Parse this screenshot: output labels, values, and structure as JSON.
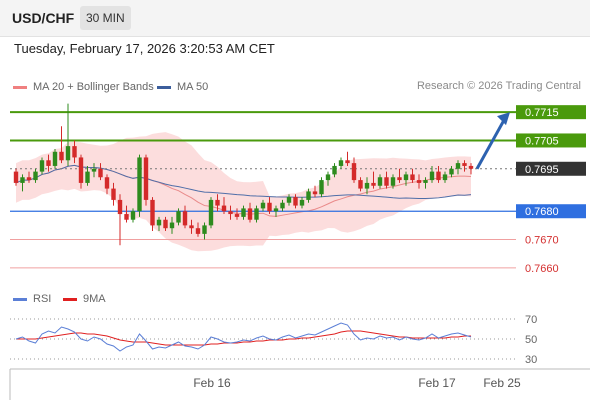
{
  "header": {
    "symbol": "USD/CHF",
    "interval": "30 MIN",
    "datetime": "Tuesday, February 17, 2026 3:20:53 AM CET"
  },
  "legend": {
    "ma20_label": "MA 20 + Bollinger Bands",
    "ma50_label": "MA 50",
    "credit": "Research © 2026 Trading Central"
  },
  "rsi_legend": {
    "rsi_label": "RSI",
    "ma9_label": "9MA"
  },
  "colors": {
    "up_candle": "#2e8b1e",
    "down_candle": "#d42a2a",
    "bollinger_fill": "#fbd4d4",
    "ma20": "#e98a8a",
    "ma50": "#4f6ea8",
    "target_green": "#4a9a0c",
    "pivot_blue": "#2f6fe0",
    "support_red": "#f0a0a0",
    "last_price": "#333333",
    "arrow": "#2d62b0",
    "rsi_line": "#5b7fd6",
    "rsi_ma": "#e02020"
  },
  "chart_data": [
    {
      "type": "candlestick",
      "ylim": [
        0.7655,
        0.772
      ],
      "x_ticks": [
        "Feb 16",
        "Feb 17",
        "Feb 25"
      ],
      "last_price": 0.7695,
      "levels": [
        {
          "label": "0.7715",
          "value": 0.7715,
          "kind": "target"
        },
        {
          "label": "0.7705",
          "value": 0.7705,
          "kind": "target"
        },
        {
          "label": "0.7695",
          "value": 0.7695,
          "kind": "last"
        },
        {
          "label": "0.7680",
          "value": 0.768,
          "kind": "pivot"
        },
        {
          "label": "0.7670",
          "value": 0.767,
          "kind": "support"
        },
        {
          "label": "0.7660",
          "value": 0.766,
          "kind": "support"
        }
      ],
      "candles": [
        [
          0.7694,
          0.7695,
          0.7689,
          0.769
        ],
        [
          0.769,
          0.7693,
          0.7687,
          0.7692
        ],
        [
          0.7692,
          0.7694,
          0.769,
          0.7691
        ],
        [
          0.7691,
          0.7695,
          0.769,
          0.7694
        ],
        [
          0.7694,
          0.7699,
          0.7693,
          0.7698
        ],
        [
          0.7698,
          0.77,
          0.7694,
          0.7696
        ],
        [
          0.7696,
          0.7702,
          0.7695,
          0.7701
        ],
        [
          0.7701,
          0.771,
          0.7697,
          0.7698
        ],
        [
          0.7698,
          0.7718,
          0.7696,
          0.7703
        ],
        [
          0.7703,
          0.7705,
          0.7697,
          0.7699
        ],
        [
          0.7699,
          0.77,
          0.7688,
          0.769
        ],
        [
          0.769,
          0.7696,
          0.7689,
          0.7694
        ],
        [
          0.7694,
          0.7697,
          0.7692,
          0.7695
        ],
        [
          0.7695,
          0.7697,
          0.7691,
          0.7692
        ],
        [
          0.7692,
          0.7693,
          0.7686,
          0.7688
        ],
        [
          0.7688,
          0.769,
          0.7682,
          0.7684
        ],
        [
          0.7684,
          0.7686,
          0.7668,
          0.7679
        ],
        [
          0.7679,
          0.7682,
          0.7676,
          0.7677
        ],
        [
          0.7677,
          0.7681,
          0.7676,
          0.768
        ],
        [
          0.768,
          0.77,
          0.7678,
          0.7699
        ],
        [
          0.7699,
          0.77,
          0.7682,
          0.7684
        ],
        [
          0.7684,
          0.7685,
          0.7673,
          0.7675
        ],
        [
          0.7675,
          0.7678,
          0.7673,
          0.7677
        ],
        [
          0.7677,
          0.7678,
          0.7673,
          0.7674
        ],
        [
          0.7674,
          0.7678,
          0.7672,
          0.7676
        ],
        [
          0.7676,
          0.7681,
          0.7675,
          0.768
        ],
        [
          0.768,
          0.7682,
          0.7674,
          0.7675
        ],
        [
          0.7675,
          0.7677,
          0.7672,
          0.7674
        ],
        [
          0.7674,
          0.7676,
          0.7671,
          0.7672
        ],
        [
          0.7672,
          0.7676,
          0.767,
          0.7675
        ],
        [
          0.7675,
          0.7685,
          0.7674,
          0.7684
        ],
        [
          0.7684,
          0.7686,
          0.768,
          0.7682
        ],
        [
          0.7682,
          0.7685,
          0.7679,
          0.768
        ],
        [
          0.768,
          0.7682,
          0.7677,
          0.7679
        ],
        [
          0.7679,
          0.7681,
          0.7677,
          0.7678
        ],
        [
          0.7678,
          0.7682,
          0.7677,
          0.7681
        ],
        [
          0.7681,
          0.7683,
          0.7676,
          0.7677
        ],
        [
          0.7677,
          0.7682,
          0.7676,
          0.7681
        ],
        [
          0.7681,
          0.7684,
          0.768,
          0.7683
        ],
        [
          0.7683,
          0.7685,
          0.7679,
          0.768
        ],
        [
          0.768,
          0.7682,
          0.7678,
          0.7681
        ],
        [
          0.7681,
          0.7684,
          0.768,
          0.7683
        ],
        [
          0.7683,
          0.7686,
          0.7682,
          0.7685
        ],
        [
          0.7685,
          0.7686,
          0.7681,
          0.7682
        ],
        [
          0.7682,
          0.7685,
          0.7681,
          0.7684
        ],
        [
          0.7684,
          0.7688,
          0.7683,
          0.7687
        ],
        [
          0.7687,
          0.7689,
          0.7685,
          0.7686
        ],
        [
          0.7686,
          0.7692,
          0.7685,
          0.7691
        ],
        [
          0.7691,
          0.7694,
          0.7689,
          0.7693
        ],
        [
          0.7693,
          0.7697,
          0.7692,
          0.7696
        ],
        [
          0.7696,
          0.7699,
          0.7695,
          0.7698
        ],
        [
          0.7698,
          0.7701,
          0.7696,
          0.7697
        ],
        [
          0.7697,
          0.7699,
          0.769,
          0.7691
        ],
        [
          0.7691,
          0.7692,
          0.7687,
          0.7688
        ],
        [
          0.7688,
          0.7692,
          0.7686,
          0.769
        ],
        [
          0.769,
          0.7694,
          0.7688,
          0.7689
        ],
        [
          0.7689,
          0.7693,
          0.7688,
          0.7692
        ],
        [
          0.7692,
          0.7694,
          0.7688,
          0.7689
        ],
        [
          0.7689,
          0.7693,
          0.7688,
          0.7692
        ],
        [
          0.7692,
          0.7695,
          0.769,
          0.7691
        ],
        [
          0.7691,
          0.7694,
          0.7689,
          0.7693
        ],
        [
          0.7693,
          0.7695,
          0.769,
          0.7691
        ],
        [
          0.7691,
          0.7693,
          0.7688,
          0.769
        ],
        [
          0.769,
          0.7692,
          0.7688,
          0.7691
        ],
        [
          0.7691,
          0.7696,
          0.769,
          0.7694
        ],
        [
          0.7694,
          0.7696,
          0.769,
          0.7691
        ],
        [
          0.7691,
          0.7694,
          0.769,
          0.7693
        ],
        [
          0.7693,
          0.7696,
          0.7692,
          0.7695
        ],
        [
          0.7695,
          0.7698,
          0.7693,
          0.7697
        ],
        [
          0.7697,
          0.7698,
          0.7694,
          0.7696
        ],
        [
          0.7696,
          0.7697,
          0.7693,
          0.7695
        ]
      ]
    },
    {
      "type": "line",
      "title": "RSI",
      "ylim": [
        25,
        75
      ],
      "y_ticks": [
        70,
        50,
        30
      ],
      "series": [
        {
          "name": "RSI",
          "values": [
            50,
            52,
            48,
            46,
            55,
            58,
            56,
            62,
            60,
            57,
            50,
            48,
            52,
            50,
            45,
            43,
            38,
            42,
            44,
            55,
            48,
            40,
            42,
            41,
            44,
            47,
            43,
            42,
            40,
            44,
            52,
            50,
            47,
            46,
            47,
            49,
            48,
            51,
            53,
            50,
            49,
            52,
            54,
            51,
            53,
            55,
            54,
            57,
            60,
            63,
            66,
            64,
            55,
            49,
            51,
            50,
            53,
            51,
            52,
            49,
            52,
            50,
            49,
            51,
            55,
            51,
            53,
            55,
            56,
            54,
            52
          ]
        },
        {
          "name": "9MA",
          "values": [
            50,
            50,
            50,
            50,
            51,
            52,
            53,
            54,
            55,
            56,
            56,
            55,
            55,
            54,
            53,
            51,
            49,
            48,
            47,
            47,
            47,
            46,
            45,
            44,
            44,
            44,
            44,
            44,
            44,
            44,
            45,
            45,
            46,
            46,
            46,
            47,
            47,
            48,
            48,
            49,
            49,
            49,
            50,
            50,
            51,
            51,
            52,
            53,
            54,
            55,
            57,
            58,
            58,
            58,
            57,
            56,
            55,
            54,
            53,
            52,
            52,
            51,
            51,
            51,
            51,
            51,
            51,
            52,
            52,
            53,
            53
          ]
        }
      ]
    }
  ]
}
